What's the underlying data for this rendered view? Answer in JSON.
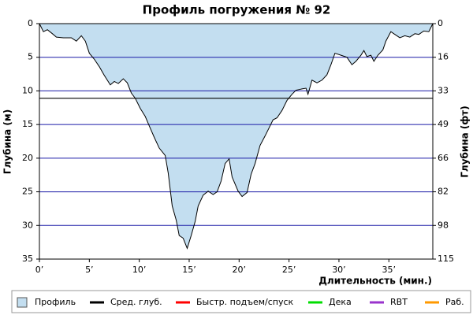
{
  "chart_data": {
    "type": "area",
    "title": "Профиль погружения № 92",
    "x_label": "Длительность (мин.)",
    "y_label": "Глубина (м)",
    "y2_label": "Глубина (фт)",
    "invert_y": true,
    "grid": true,
    "grid_color": "#1a1aa6",
    "xlim": [
      0,
      39.4
    ],
    "ylim": [
      0,
      35
    ],
    "y2lim": [
      0,
      114.8
    ],
    "xticks": [
      {
        "value": 0,
        "label": "0’"
      },
      {
        "value": 5,
        "label": "5’"
      },
      {
        "value": 10,
        "label": "10’"
      },
      {
        "value": 15,
        "label": "15’"
      },
      {
        "value": 20,
        "label": "20’"
      },
      {
        "value": 25,
        "label": "25’"
      },
      {
        "value": 30,
        "label": "30’"
      },
      {
        "value": 35,
        "label": "35’"
      }
    ],
    "yticks": [
      0,
      5,
      10,
      15,
      20,
      25,
      30,
      35
    ],
    "y2ticks": [
      0,
      {
        "value": 16.4,
        "label": "16"
      },
      {
        "value": 32.8,
        "label": "33"
      },
      {
        "value": 49.2,
        "label": "49"
      },
      {
        "value": 65.6,
        "label": "66"
      },
      {
        "value": 82.0,
        "label": "82"
      },
      {
        "value": 98.4,
        "label": "98"
      },
      {
        "value": 114.8,
        "label": "115"
      }
    ],
    "series": [
      {
        "name": "Профиль",
        "color": "#c3def0",
        "x": [
          0,
          0.4,
          0.8,
          1.3,
          1.7,
          2.4,
          3.2,
          3.7,
          4.2,
          4.6,
          5.0,
          5.5,
          6.0,
          6.5,
          7.1,
          7.5,
          7.9,
          8.4,
          8.8,
          9.2,
          9.6,
          10.1,
          10.6,
          11.0,
          11.5,
          12.0,
          12.6,
          12.9,
          13.3,
          13.7,
          14.0,
          14.4,
          14.8,
          15.2,
          15.6,
          15.9,
          16.4,
          16.9,
          17.4,
          17.8,
          18.2,
          18.6,
          19.0,
          19.3,
          19.9,
          20.3,
          20.8,
          21.2,
          21.6,
          22.1,
          22.6,
          23.0,
          23.4,
          23.8,
          24.3,
          24.8,
          25.3,
          25.7,
          26.3,
          26.7,
          26.9,
          27.3,
          27.8,
          28.3,
          28.8,
          29.2,
          29.6,
          30.2,
          30.8,
          31.3,
          31.7,
          32.2,
          32.5,
          32.8,
          33.2,
          33.5,
          33.9,
          34.4,
          34.7,
          35.2,
          35.6,
          36.1,
          36.6,
          37.1,
          37.6,
          38.0,
          38.5,
          39.0,
          39.4
        ],
        "values": [
          0,
          1.2,
          0.9,
          1.5,
          2.0,
          2.1,
          2.1,
          2.6,
          1.8,
          2.6,
          4.4,
          5.3,
          6.4,
          7.7,
          9.1,
          8.6,
          8.9,
          8.2,
          8.8,
          10.3,
          11.1,
          12.6,
          13.8,
          15.2,
          16.9,
          18.5,
          19.6,
          22.2,
          27.1,
          29.2,
          31.5,
          31.9,
          33.4,
          31.5,
          29.4,
          27.1,
          25.5,
          24.9,
          25.4,
          25.0,
          23.4,
          20.8,
          20.1,
          22.8,
          24.9,
          25.7,
          25.1,
          22.4,
          20.8,
          18.1,
          16.7,
          15.5,
          14.3,
          14.0,
          12.9,
          11.4,
          10.5,
          9.9,
          9.7,
          9.6,
          10.5,
          8.4,
          8.8,
          8.4,
          7.6,
          6.1,
          4.4,
          4.7,
          5.0,
          6.1,
          5.6,
          4.7,
          4.0,
          4.9,
          4.7,
          5.6,
          4.7,
          3.9,
          2.6,
          1.2,
          1.6,
          2.1,
          1.8,
          2.0,
          1.5,
          1.6,
          1.1,
          1.2,
          0
        ]
      }
    ],
    "avg_depth": {
      "name": "Сред. глуб.",
      "color": "#000000",
      "value": 11.1
    },
    "legend_extra": [
      {
        "name": "Быстр. подъем/спуск",
        "color": "#ff0000"
      },
      {
        "name": "Дека",
        "color": "#00dd00"
      },
      {
        "name": "RBT",
        "color": "#9933cc"
      },
      {
        "name": "Раб.",
        "color": "#ff9900"
      }
    ]
  }
}
